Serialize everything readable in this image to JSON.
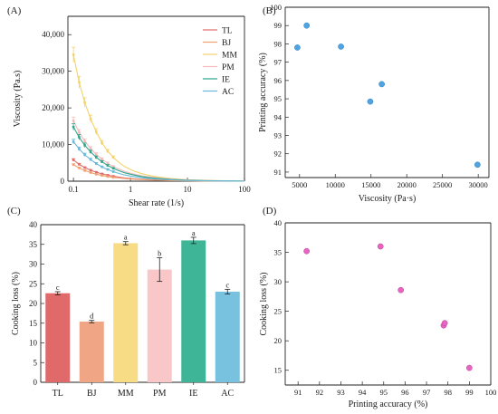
{
  "chart_data": [
    {
      "panel": "(A)",
      "type": "line",
      "xlabel": "Shear rate (1/s)",
      "ylabel": "Viscosity (Pa.s)",
      "xscale": "log",
      "xlim": [
        0.08,
        100
      ],
      "ylim": [
        0,
        45000
      ],
      "xticks": [
        0.1,
        1,
        10,
        100
      ],
      "xtick_labels": [
        "0.1",
        "1",
        "10",
        "100"
      ],
      "yticks": [
        0,
        10000,
        20000,
        30000,
        40000
      ],
      "ytick_labels": [
        "0",
        "10,000",
        "20,000",
        "30,000",
        "40,000"
      ],
      "legend_position": "top-right",
      "x": [
        0.1,
        0.126,
        0.158,
        0.2,
        0.251,
        0.316,
        0.398,
        0.5,
        0.63,
        0.79,
        1.0,
        1.26,
        1.58,
        2.0,
        3.0,
        5.0,
        10,
        20,
        50,
        100
      ],
      "series": [
        {
          "name": "TL",
          "color": "#e06a6a",
          "values": [
            5800,
            4600,
            3700,
            3000,
            2450,
            2000,
            1650,
            1350,
            1100,
            900,
            750,
            630,
            530,
            440,
            330,
            230,
            130,
            75,
            35,
            18
          ]
        },
        {
          "name": "BJ",
          "color": "#f0a070",
          "values": [
            4500,
            3600,
            2900,
            2350,
            1900,
            1550,
            1270,
            1040,
            860,
            710,
            590,
            490,
            410,
            340,
            250,
            170,
            95,
            55,
            25,
            12
          ]
        },
        {
          "name": "MM",
          "color": "#f2d36a",
          "values": [
            34500,
            27000,
            21500,
            17000,
            13500,
            10500,
            8200,
            6500,
            5100,
            4000,
            3200,
            2550,
            2050,
            1650,
            1150,
            750,
            400,
            220,
            100,
            50
          ]
        },
        {
          "name": "PM",
          "color": "#f4b9b9",
          "values": [
            16500,
            13300,
            10900,
            8900,
            7300,
            6000,
            4900,
            4000,
            3300,
            2700,
            2200,
            1800,
            1480,
            1210,
            880,
            580,
            310,
            170,
            75,
            38
          ]
        },
        {
          "name": "IE",
          "color": "#2fa58a",
          "values": [
            14800,
            12000,
            9800,
            8000,
            6500,
            5300,
            4300,
            3500,
            2850,
            2300,
            1900,
            1550,
            1270,
            1040,
            760,
            500,
            270,
            150,
            68,
            34
          ]
        },
        {
          "name": "AC",
          "color": "#66b9d9",
          "values": [
            10800,
            8800,
            7200,
            5900,
            4800,
            3900,
            3200,
            2600,
            2100,
            1700,
            1400,
            1150,
            940,
            770,
            560,
            370,
            200,
            110,
            50,
            25
          ]
        }
      ]
    },
    {
      "panel": "(B)",
      "type": "scatter",
      "xlabel": "Viscosity (Pa·s)",
      "ylabel": "Printing accuracy (%)",
      "xlim": [
        3000,
        31500
      ],
      "ylim": [
        90.7,
        100
      ],
      "xticks": [
        5000,
        10000,
        15000,
        20000,
        25000,
        30000
      ],
      "yticks": [
        91,
        92,
        93,
        94,
        95,
        96,
        97,
        98,
        99,
        100
      ],
      "color": "#4fa3e0",
      "points": [
        {
          "x": 4700,
          "y": 97.8
        },
        {
          "x": 6000,
          "y": 99.0
        },
        {
          "x": 10800,
          "y": 97.85
        },
        {
          "x": 14900,
          "y": 94.85
        },
        {
          "x": 16500,
          "y": 95.8
        },
        {
          "x": 29900,
          "y": 91.4
        }
      ]
    },
    {
      "panel": "(C)",
      "type": "bar",
      "xlabel": "",
      "ylabel": "Cooking loss (%)",
      "ylim": [
        0,
        40
      ],
      "yticks": [
        0,
        5,
        10,
        15,
        20,
        25,
        30,
        35,
        40
      ],
      "categories": [
        "TL",
        "BJ",
        "MM",
        "PM",
        "IE",
        "AC"
      ],
      "values": [
        22.6,
        15.4,
        35.3,
        28.6,
        36.0,
        23.0
      ],
      "errors": [
        0.4,
        0.3,
        0.4,
        3.0,
        0.8,
        0.6
      ],
      "significance": [
        "c",
        "d",
        "a",
        "b",
        "a",
        "c"
      ],
      "colors": [
        "#e06a6a",
        "#f0a584",
        "#f7db85",
        "#f9c7c7",
        "#3fb597",
        "#79c2df"
      ]
    },
    {
      "panel": "(D)",
      "type": "scatter",
      "xlabel": "Printing accuracy (%)",
      "ylabel": "Cooking loss (%)",
      "xlim": [
        90.4,
        100
      ],
      "ylim": [
        12.5,
        40
      ],
      "xticks": [
        91,
        92,
        93,
        94,
        95,
        96,
        97,
        98,
        99,
        100
      ],
      "yticks": [
        15,
        20,
        25,
        30,
        35,
        40
      ],
      "color": "#e466c0",
      "points": [
        {
          "x": 91.4,
          "y": 35.2
        },
        {
          "x": 94.85,
          "y": 36.0
        },
        {
          "x": 95.8,
          "y": 28.6
        },
        {
          "x": 97.8,
          "y": 22.6
        },
        {
          "x": 97.85,
          "y": 23.0
        },
        {
          "x": 99.0,
          "y": 15.4
        }
      ]
    }
  ]
}
